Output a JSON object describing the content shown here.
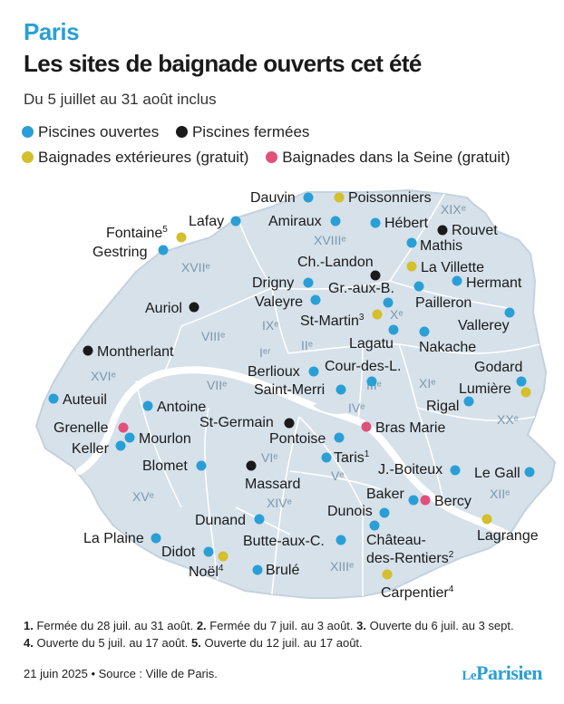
{
  "header": {
    "kicker": "Paris",
    "title": "Les sites de baignade ouverts cet été",
    "subtitle": "Du 5 juillet au 31 août inclus"
  },
  "legend": [
    {
      "label": "Piscines ouvertes",
      "color": "#2a9fd6"
    },
    {
      "label": "Piscines fermées",
      "color": "#1a1a1a"
    },
    {
      "label": "Baignades extérieures (gratuit)",
      "color": "#d4bf2c"
    },
    {
      "label": "Baignades dans la Seine (gratuit)",
      "color": "#e0517a"
    }
  ],
  "colors": {
    "open": "#2a9fd6",
    "closed": "#1a1a1a",
    "outdoor": "#d4bf2c",
    "seine": "#e0517a",
    "land": "#d6e1ea",
    "river": "#ffffff"
  },
  "arrondissements": [
    "XIXᵉ",
    "XVIIIᵉ",
    "XVIIᵉ",
    "VIIIᵉ",
    "IXᵉ",
    "Xᵉ",
    "IIᵉ",
    "Iᵉʳ",
    "XVIᵉ",
    "VIIᵉ",
    "IIIᵉ",
    "XIᵉ",
    "IVᵉ",
    "XXᵉ",
    "VIᵉ",
    "Vᵉ",
    "XVᵉ",
    "XIVᵉ",
    "XIIᵉ",
    "XIIIᵉ"
  ],
  "sites": [
    {
      "name": "Dauvin",
      "type": "open",
      "sup": ""
    },
    {
      "name": "Poissonniers",
      "type": "outdoor",
      "sup": ""
    },
    {
      "name": "Lafay",
      "type": "open",
      "sup": ""
    },
    {
      "name": "Amiraux",
      "type": "open",
      "sup": ""
    },
    {
      "name": "Hébert",
      "type": "open",
      "sup": ""
    },
    {
      "name": "Rouvet",
      "type": "closed",
      "sup": ""
    },
    {
      "name": "Fontaine",
      "type": "outdoor",
      "sup": "5"
    },
    {
      "name": "Gestring",
      "type": "open",
      "sup": ""
    },
    {
      "name": "Mathis",
      "type": "open",
      "sup": ""
    },
    {
      "name": "Ch.-Landon",
      "type": "closed",
      "sup": ""
    },
    {
      "name": "La Villette",
      "type": "outdoor",
      "sup": ""
    },
    {
      "name": "Hermant",
      "type": "open",
      "sup": ""
    },
    {
      "name": "Drigny",
      "type": "open",
      "sup": ""
    },
    {
      "name": "Gr.-aux-B.",
      "type": "open",
      "sup": ""
    },
    {
      "name": "Valeyre",
      "type": "open",
      "sup": ""
    },
    {
      "name": "Pailleron",
      "type": "open",
      "sup": ""
    },
    {
      "name": "Auriol",
      "type": "closed",
      "sup": ""
    },
    {
      "name": "St-Martin",
      "type": "outdoor",
      "sup": "3"
    },
    {
      "name": "Vallerey",
      "type": "open",
      "sup": ""
    },
    {
      "name": "Lagatu",
      "type": "open",
      "sup": ""
    },
    {
      "name": "Nakache",
      "type": "open",
      "sup": ""
    },
    {
      "name": "Montherlant",
      "type": "closed",
      "sup": ""
    },
    {
      "name": "Berlioux",
      "type": "open",
      "sup": ""
    },
    {
      "name": "Cour-des-L.",
      "type": "open",
      "sup": ""
    },
    {
      "name": "Godard",
      "type": "open",
      "sup": ""
    },
    {
      "name": "Saint-Merri",
      "type": "open",
      "sup": ""
    },
    {
      "name": "Lumière",
      "type": "outdoor",
      "sup": ""
    },
    {
      "name": "Auteuil",
      "type": "open",
      "sup": ""
    },
    {
      "name": "Antoine",
      "type": "open",
      "sup": ""
    },
    {
      "name": "Rigal",
      "type": "open",
      "sup": ""
    },
    {
      "name": "St-Germain",
      "type": "closed",
      "sup": ""
    },
    {
      "name": "Grenelle",
      "type": "seine",
      "sup": ""
    },
    {
      "name": "Bras Marie",
      "type": "seine",
      "sup": ""
    },
    {
      "name": "Mourlon",
      "type": "open",
      "sup": ""
    },
    {
      "name": "Pontoise",
      "type": "open",
      "sup": ""
    },
    {
      "name": "Keller",
      "type": "open",
      "sup": ""
    },
    {
      "name": "Taris",
      "type": "open",
      "sup": "1"
    },
    {
      "name": "Blomet",
      "type": "open",
      "sup": ""
    },
    {
      "name": "J.-Boiteux",
      "type": "open",
      "sup": ""
    },
    {
      "name": "Le Gall",
      "type": "open",
      "sup": ""
    },
    {
      "name": "Massard",
      "type": "closed",
      "sup": ""
    },
    {
      "name": "Baker",
      "type": "open",
      "sup": ""
    },
    {
      "name": "Bercy",
      "type": "seine",
      "sup": ""
    },
    {
      "name": "Dunois",
      "type": "open",
      "sup": ""
    },
    {
      "name": "Dunand",
      "type": "open",
      "sup": ""
    },
    {
      "name": "Lagrange",
      "type": "outdoor",
      "sup": ""
    },
    {
      "name": "La Plaine",
      "type": "open",
      "sup": ""
    },
    {
      "name": "Butte-aux-C.",
      "type": "open",
      "sup": ""
    },
    {
      "name": "Château-",
      "type": "open",
      "sup": ""
    },
    {
      "name": "des-Rentiers",
      "type": "label",
      "sup": "2"
    },
    {
      "name": "Didot",
      "type": "open",
      "sup": ""
    },
    {
      "name": "Noël",
      "type": "outdoor",
      "sup": "4"
    },
    {
      "name": "Brulé",
      "type": "open",
      "sup": ""
    },
    {
      "name": "Carpentier",
      "type": "outdoor",
      "sup": "4"
    }
  ],
  "footnotes": {
    "line1": [
      {
        "num": "1.",
        "text": " Fermée du 28 juil. au 31 août."
      },
      {
        "num": "2.",
        "text": " Fermée du 7 juil. au 3 août."
      },
      {
        "num": "3.",
        "text": " Ouverte du 6 juil. au 3 sept."
      }
    ],
    "line2": [
      {
        "num": "4.",
        "text": " Ouverte du 5 juil. au 17 août."
      },
      {
        "num": "5.",
        "text": " Ouverte du 12 juil. au 17 août."
      }
    ]
  },
  "source": "21 juin 2025 • Source : Ville de Paris.",
  "logo": {
    "le": "Le",
    "name": "Parisien"
  }
}
